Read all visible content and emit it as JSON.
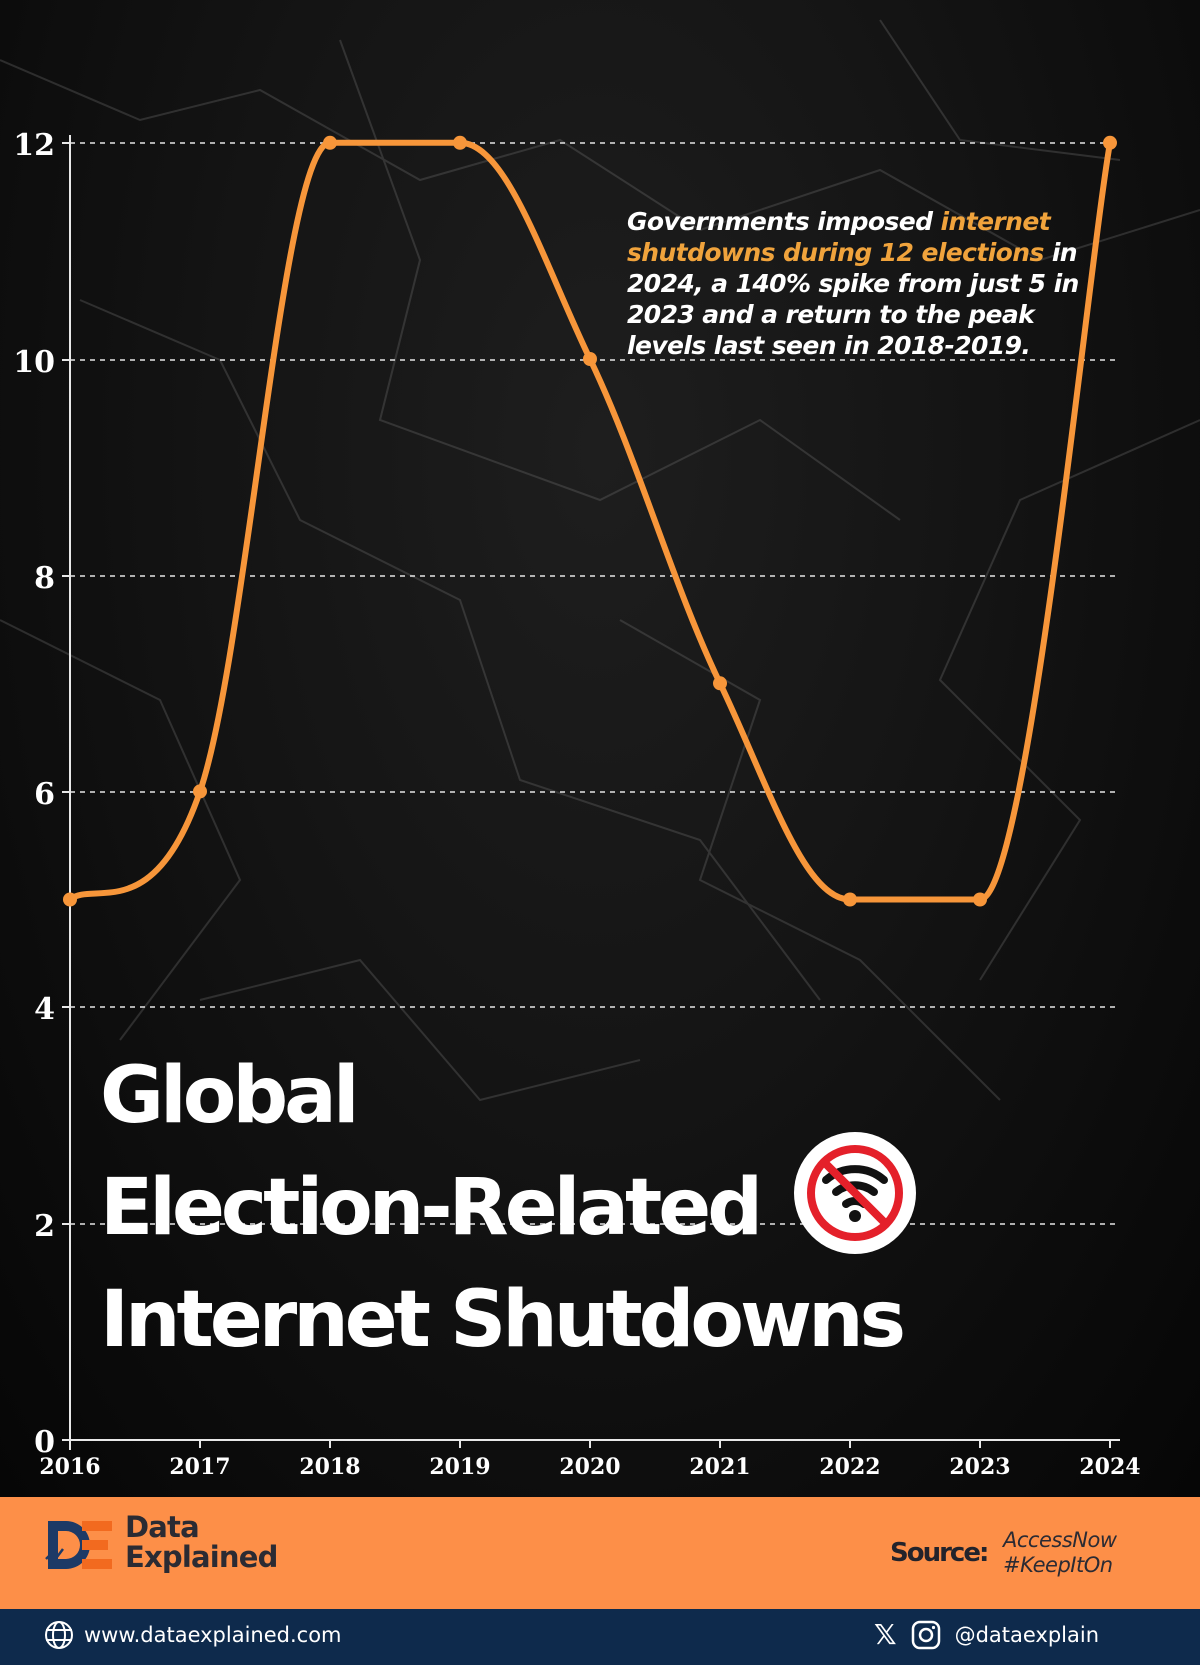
{
  "chart_data": {
    "type": "line",
    "title": "Global Election-Related Internet Shutdowns",
    "x": [
      "2016",
      "2017",
      "2018",
      "2019",
      "2020",
      "2021",
      "2022",
      "2023",
      "2024"
    ],
    "values": [
      5,
      6,
      12,
      12,
      10,
      7,
      5,
      5,
      12
    ],
    "xlabel": "",
    "ylabel": "",
    "ylim": [
      0,
      12
    ],
    "yticks": [
      0,
      2,
      4,
      6,
      8,
      10,
      12
    ],
    "grid": "horizontal dashed",
    "line_color": "#f7963a",
    "smooth": true,
    "annotation": "Governments imposed internet shutdowns during 12 elections in 2024, a 140% spike from just 5 in 2023 and a return to the peak levels last seen in 2018-2019."
  },
  "title": {
    "line1": "Global",
    "line2": "Election-Related",
    "line3": "Internet Shutdowns",
    "icon": "no-wifi-icon"
  },
  "annotation": {
    "part1": "Governments imposed ",
    "highlight": "internet shutdowns during 12 elections",
    "part2": " in 2024, a 140% spike from just 5 in 2023 and a return to the peak levels last seen in 2018-2019."
  },
  "footer": {
    "brand_line1": "Data",
    "brand_line2": "Explained",
    "source_label": "Source:",
    "source_line1": "AccessNow",
    "source_line2": "#KeepItOn",
    "website": "www.dataexplained.com",
    "handle": "@dataexplain",
    "x_glyph": "𝕏"
  },
  "colors": {
    "accent": "#f7963a",
    "highlight_text": "#f0a33c",
    "footer_orange": "#fd8f48",
    "footer_navy": "#0e2a4c"
  }
}
